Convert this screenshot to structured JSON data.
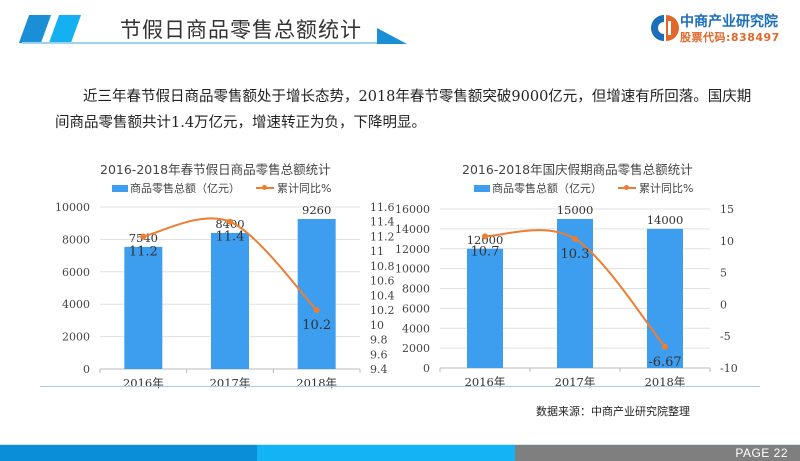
{
  "header": {
    "title": "节假日商品零售总额统计",
    "logo_name": "中商产业研究院",
    "logo_code": "股票代码:838497"
  },
  "body": {
    "paragraph": "近三年春节假日商品零售额处于增长态势，2018年春节零售额突破9000亿元，但增速有所回落。国庆期间商品零售额共计1.4万亿元，增速转正为负，下降明显。"
  },
  "colors": {
    "bar": "#3d9ef0",
    "line": "#ed7d31",
    "brand_blue": "#1a8fd6",
    "brand_orange": "#e2672a"
  },
  "chart_data": [
    {
      "type": "bar",
      "title": "2016-2018年春节假日商品零售总额统计",
      "categories": [
        "2016年",
        "2017年",
        "2018年"
      ],
      "series": [
        {
          "name": "商品零售总额（亿元）",
          "type": "bar",
          "axis": "left",
          "values": [
            7540,
            8400,
            9260
          ],
          "labels": [
            "7540",
            "8400",
            "9260"
          ]
        },
        {
          "name": "累计同比%",
          "type": "line",
          "axis": "right",
          "values": [
            11.2,
            11.4,
            10.2
          ],
          "labels": [
            "11.2",
            "11.4",
            "10.2"
          ]
        }
      ],
      "y_left": {
        "min": 0,
        "max": 10000,
        "ticks": [
          "0",
          "2000",
          "4000",
          "6000",
          "8000",
          "10000"
        ]
      },
      "y_right": {
        "min": 9.4,
        "max": 11.6,
        "ticks": [
          "9.4",
          "9.6",
          "9.8",
          "10",
          "10.2",
          "10.4",
          "10.6",
          "10.8",
          "11",
          "11.2",
          "11.4",
          "11.6"
        ]
      },
      "legend_position": "top",
      "grid": true
    },
    {
      "type": "bar",
      "title": "2016-2018年国庆假期商品零售总额统计",
      "categories": [
        "2016年",
        "2017年",
        "2018年"
      ],
      "series": [
        {
          "name": "商品零售总额（亿元）",
          "type": "bar",
          "axis": "left",
          "values": [
            12000,
            15000,
            14000
          ],
          "labels": [
            "12000",
            "15000",
            "14000"
          ]
        },
        {
          "name": "累计同比%",
          "type": "line",
          "axis": "right",
          "values": [
            10.7,
            10.3,
            -6.67
          ],
          "labels": [
            "10.7",
            "10.3",
            "-6.67"
          ]
        }
      ],
      "y_left": {
        "min": 0,
        "max": 16000,
        "ticks": [
          "0",
          "2000",
          "4000",
          "6000",
          "8000",
          "10000",
          "12000",
          "14000",
          "16000"
        ]
      },
      "y_right": {
        "min": -10,
        "max": 15,
        "ticks": [
          "-10",
          "-5",
          "0",
          "5",
          "10",
          "15"
        ]
      },
      "legend_position": "top",
      "grid": true
    }
  ],
  "charts_meta": {
    "legend_bar": "商品零售总额（亿元）",
    "legend_line": "累计同比%"
  },
  "footer": {
    "source": "数据来源：中商产业研究院整理",
    "page": "PAGE  22"
  }
}
